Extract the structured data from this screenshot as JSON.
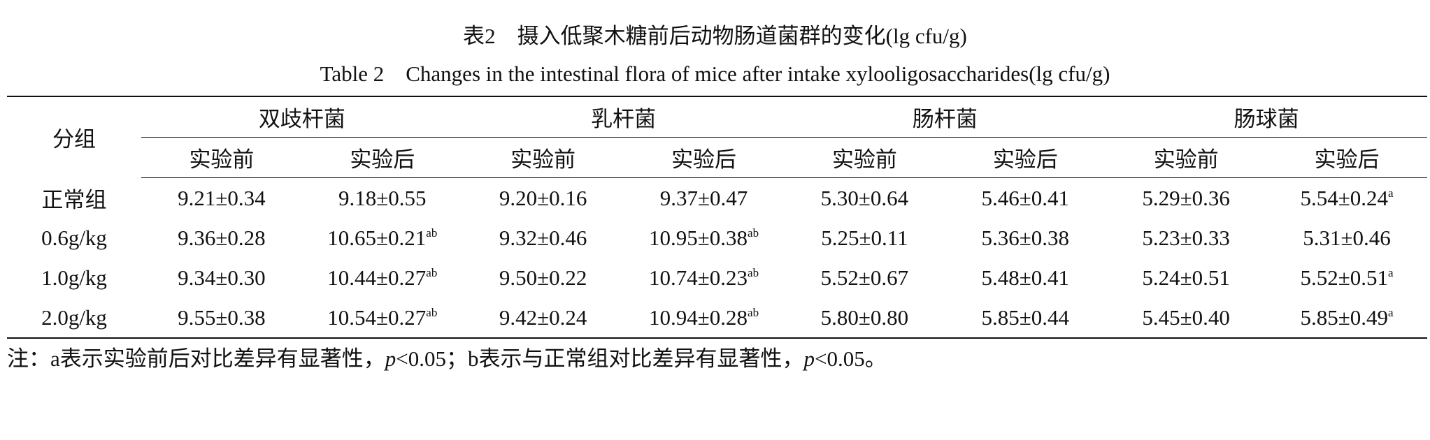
{
  "title_cn": "表2　摄入低聚木糖前后动物肠道菌群的变化(lg cfu/g)",
  "title_en": "Table 2　Changes in the intestinal flora of mice after intake xylooligosaccharides(lg cfu/g)",
  "table": {
    "group_header": "分组",
    "bacteria": [
      "双歧杆菌",
      "乳杆菌",
      "肠杆菌",
      "肠球菌"
    ],
    "phases": [
      "实验前",
      "实验后",
      "实验前",
      "实验后",
      "实验前",
      "实验后",
      "实验前",
      "实验后"
    ],
    "rows": [
      [
        "正常组",
        "9.21±0.34",
        "9.18±0.55",
        "9.20±0.16",
        "9.37±0.47",
        "5.30±0.64",
        "5.46±0.41",
        "5.29±0.36",
        {
          "value": "5.54±0.24",
          "sup": "a"
        }
      ],
      [
        "0.6g/kg",
        "9.36±0.28",
        {
          "value": "10.65±0.21",
          "sup": "ab"
        },
        "9.32±0.46",
        {
          "value": "10.95±0.38",
          "sup": "ab"
        },
        "5.25±0.11",
        "5.36±0.38",
        "5.23±0.33",
        "5.31±0.46"
      ],
      [
        "1.0g/kg",
        "9.34±0.30",
        {
          "value": "10.44±0.27",
          "sup": "ab"
        },
        "9.50±0.22",
        {
          "value": "10.74±0.23",
          "sup": "ab"
        },
        "5.52±0.67",
        "5.48±0.41",
        "5.24±0.51",
        {
          "value": "5.52±0.51",
          "sup": "a"
        }
      ],
      [
        "2.0g/kg",
        "9.55±0.38",
        {
          "value": "10.54±0.27",
          "sup": "ab"
        },
        "9.42±0.24",
        {
          "value": "10.94±0.28",
          "sup": "ab"
        },
        "5.80±0.80",
        "5.85±0.44",
        "5.45±0.40",
        {
          "value": "5.85±0.49",
          "sup": "a"
        }
      ]
    ]
  },
  "note": [
    "注：a表示实验前后对比差异有显著性，",
    "p",
    "<0.05；b表示与正常组对比差异有显著性，",
    "p",
    "<0.05。"
  ]
}
